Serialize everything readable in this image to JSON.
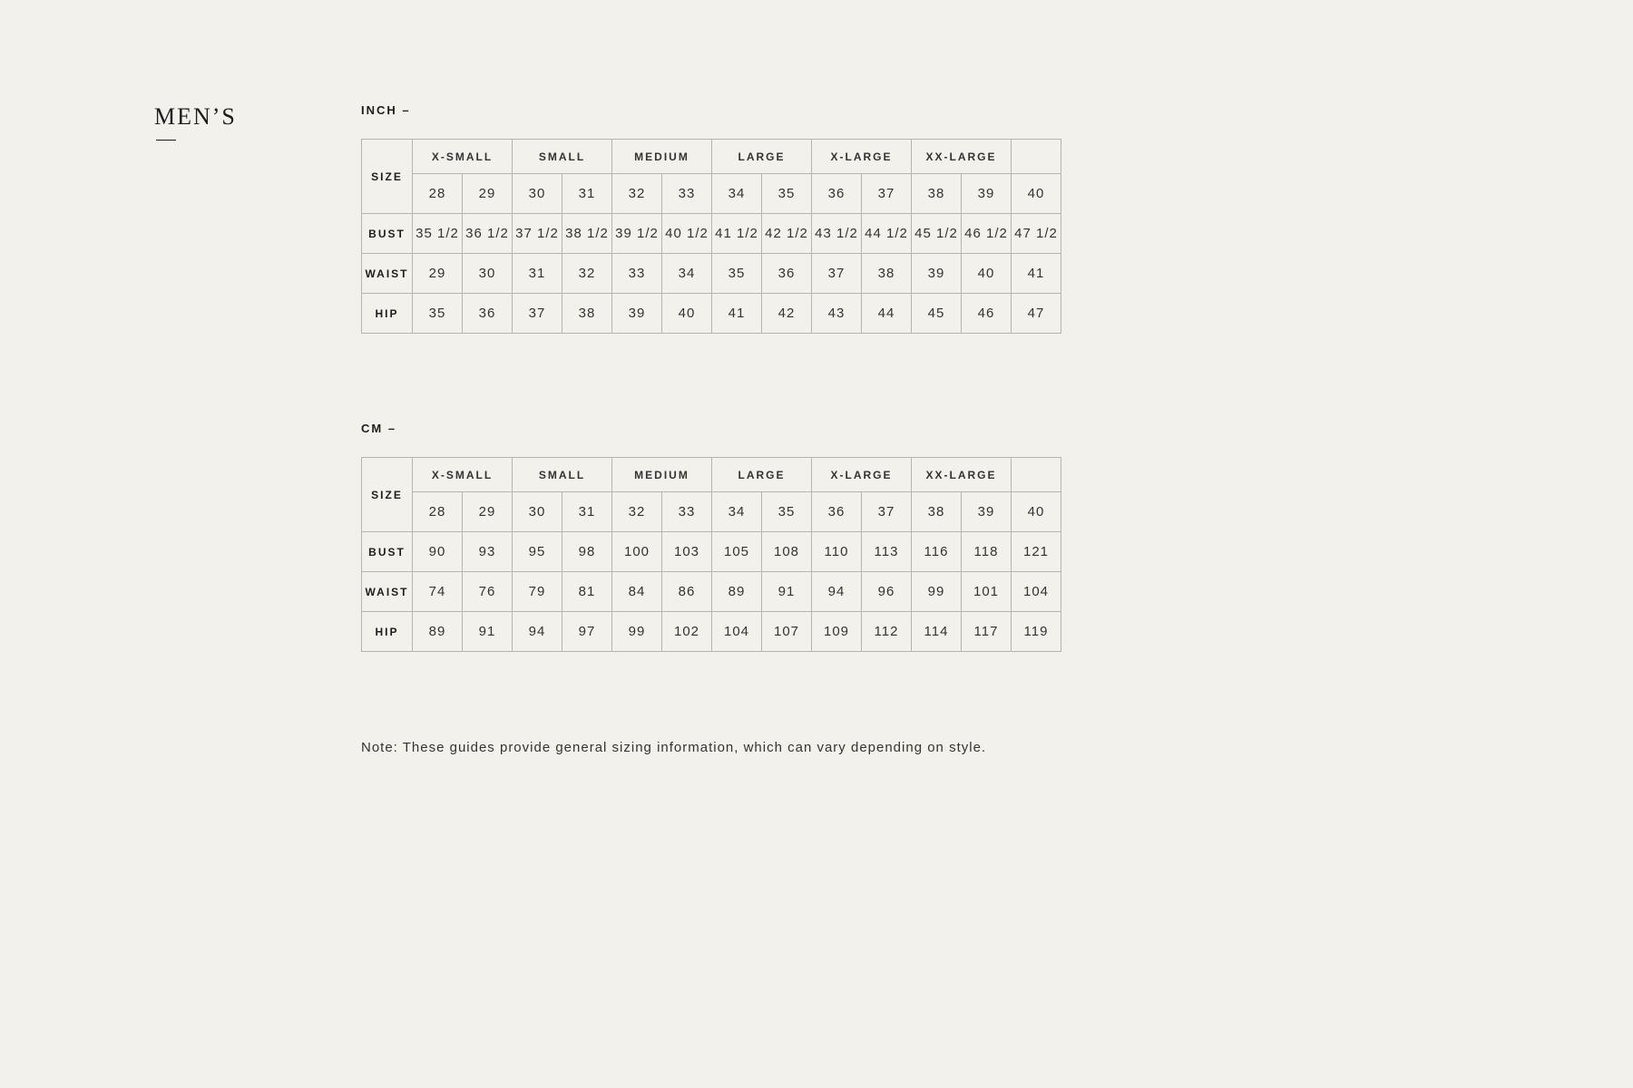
{
  "page": {
    "background_color": "#f3f1ec",
    "text_color": "#1d1d1d",
    "border_color": "#b8b4ab"
  },
  "section_title": "MEN’S",
  "size_label": "SIZE",
  "size_groups": [
    "X-SMALL",
    "SMALL",
    "MEDIUM",
    "LARGE",
    "X-LARGE",
    "XX-LARGE"
  ],
  "numeric_sizes": [
    "28",
    "29",
    "30",
    "31",
    "32",
    "33",
    "34",
    "35",
    "36",
    "37",
    "38",
    "39",
    "40"
  ],
  "measurements": [
    "BUST",
    "WAIST",
    "HIP"
  ],
  "tables": {
    "inch": {
      "label": "INCH –",
      "rows": {
        "BUST": [
          "35 1/2",
          "36 1/2",
          "37 1/2",
          "38 1/2",
          "39 1/2",
          "40 1/2",
          "41 1/2",
          "42 1/2",
          "43 1/2",
          "44 1/2",
          "45 1/2",
          "46 1/2",
          "47 1/2"
        ],
        "WAIST": [
          "29",
          "30",
          "31",
          "32",
          "33",
          "34",
          "35",
          "36",
          "37",
          "38",
          "39",
          "40",
          "41"
        ],
        "HIP": [
          "35",
          "36",
          "37",
          "38",
          "39",
          "40",
          "41",
          "42",
          "43",
          "44",
          "45",
          "46",
          "47"
        ]
      }
    },
    "cm": {
      "label": "CM –",
      "rows": {
        "BUST": [
          "90",
          "93",
          "95",
          "98",
          "100",
          "103",
          "105",
          "108",
          "110",
          "113",
          "116",
          "118",
          "121"
        ],
        "WAIST": [
          "74",
          "76",
          "79",
          "81",
          "84",
          "86",
          "89",
          "91",
          "94",
          "96",
          "99",
          "101",
          "104"
        ],
        "HIP": [
          "89",
          "91",
          "94",
          "97",
          "99",
          "102",
          "104",
          "107",
          "109",
          "112",
          "114",
          "117",
          "119"
        ]
      }
    }
  },
  "footnote": "Note: These guides provide general sizing information, which can vary depending on style."
}
